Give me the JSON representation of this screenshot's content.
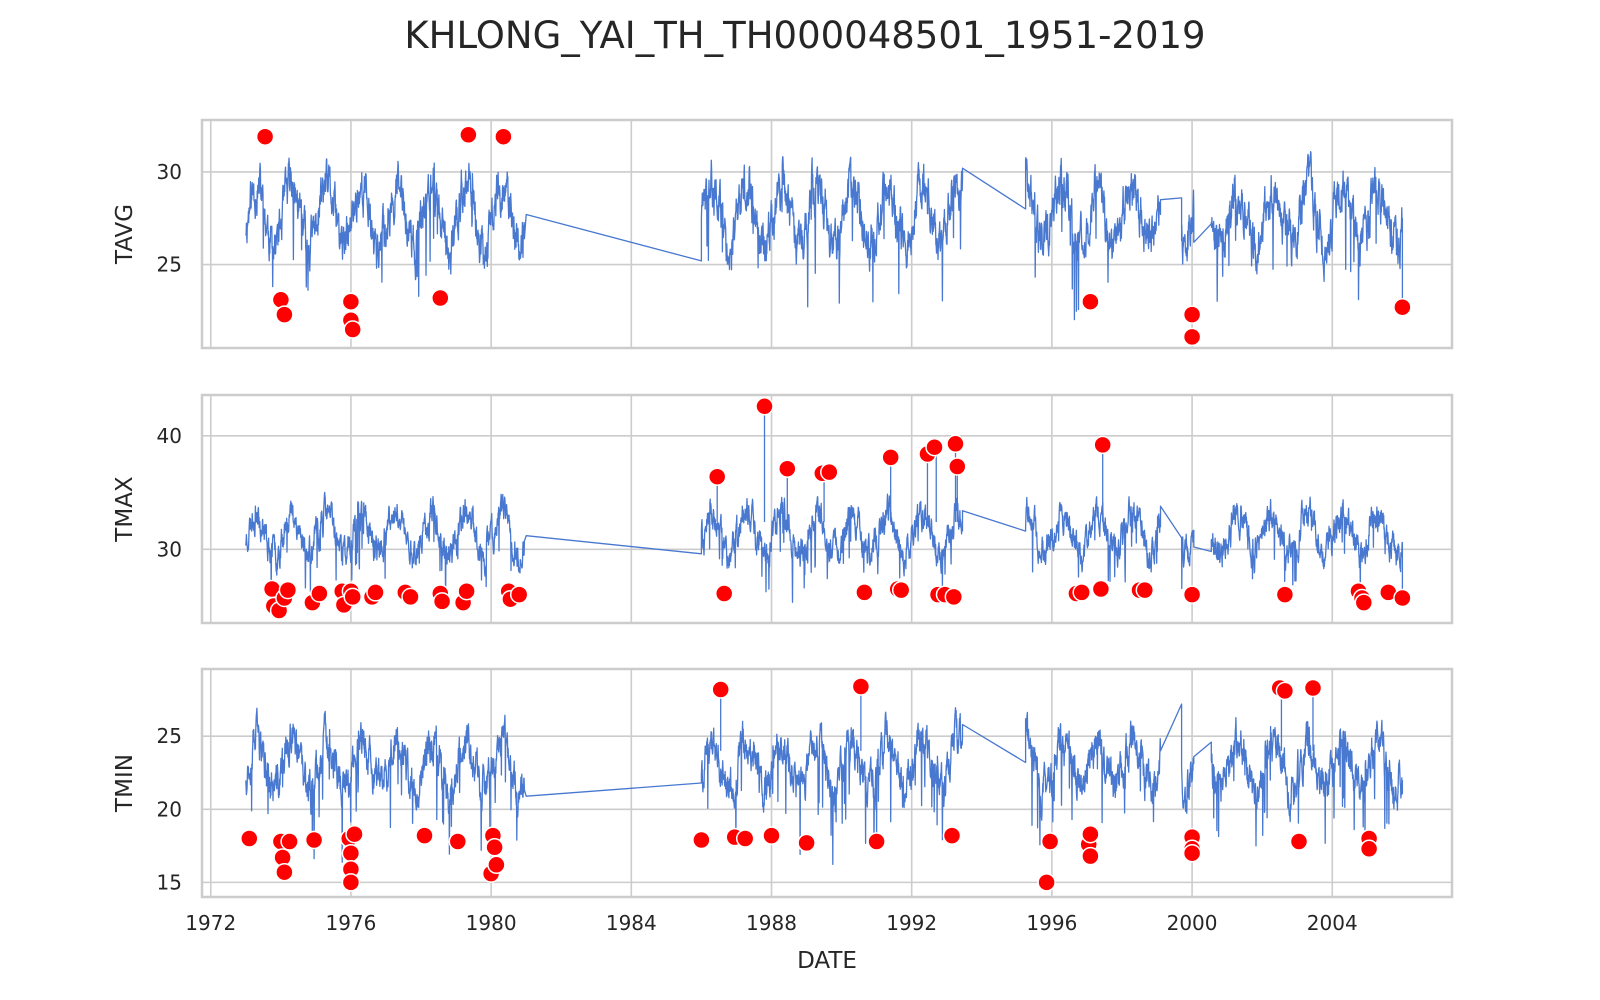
{
  "chart_data": {
    "type": "line",
    "title": "KHLONG_YAI_TH_TH000048501_1951-2019",
    "xlabel": "DATE",
    "x_ticks": [
      "1972",
      "1976",
      "1980",
      "1984",
      "1988",
      "1992",
      "1996",
      "2000",
      "2004"
    ],
    "xlim": [
      "1971-10",
      "2007-06"
    ],
    "grid": true,
    "colors": {
      "line": "#4878cf",
      "outlier": "#ff0000"
    },
    "segments": [
      [
        "1973.0",
        "1980.95"
      ],
      [
        "1986.0",
        "1993.45"
      ],
      [
        "1995.25",
        "1999.1"
      ],
      [
        "1999.7",
        "2000.05"
      ],
      [
        "2000.55",
        "2006.0"
      ]
    ],
    "panels": [
      {
        "ylabel": "TAVG",
        "ylim": [
          20.5,
          32.8
        ],
        "yticks": [
          25,
          30
        ],
        "series": {
          "seed": 11,
          "mean": 27.6,
          "amplitude": 1.6,
          "noise": 0.9,
          "dips": 0.02,
          "dip_depth": 3.5,
          "bridge_points": [
            [
              1981.0,
              27.7
            ],
            [
              1986.0,
              25.2
            ],
            [
              1993.45,
              30.2
            ],
            [
              1995.25,
              28.0
            ],
            [
              1999.1,
              28.5
            ],
            [
              1999.7,
              28.6
            ],
            [
              2000.05,
              26.2
            ],
            [
              2000.55,
              27.2
            ],
            [
              2006.0,
              22.7
            ]
          ]
        },
        "outliers": [
          [
            1973.55,
            31.9
          ],
          [
            1974.0,
            23.1
          ],
          [
            1974.1,
            22.3
          ],
          [
            1976.0,
            23.0
          ],
          [
            1976.0,
            22.0
          ],
          [
            1976.05,
            21.5
          ],
          [
            1978.55,
            23.2
          ],
          [
            1979.35,
            32.0
          ],
          [
            1980.35,
            31.9
          ],
          [
            1997.1,
            23.0
          ],
          [
            2000.0,
            22.3
          ],
          [
            2000.0,
            21.1
          ],
          [
            2006.0,
            22.7
          ]
        ]
      },
      {
        "ylabel": "TMAX",
        "ylim": [
          23.5,
          43.6
        ],
        "yticks": [
          30,
          40
        ],
        "series": {
          "seed": 23,
          "mean": 31.4,
          "amplitude": 1.8,
          "noise": 1.0,
          "dips": 0.025,
          "dip_depth": 4.0,
          "spikes": [
            [
              1986.45,
              36.4
            ],
            [
              1987.8,
              42.6
            ],
            [
              1988.45,
              37.1
            ],
            [
              1989.5,
              36.8
            ],
            [
              1991.4,
              38.1
            ],
            [
              1992.45,
              38.4
            ],
            [
              1992.7,
              39.0
            ],
            [
              1993.25,
              39.3
            ],
            [
              1993.3,
              37.3
            ],
            [
              1997.45,
              39.2
            ]
          ],
          "bridge_points": [
            [
              1981.0,
              31.2
            ],
            [
              1986.0,
              29.6
            ],
            [
              1993.45,
              33.4
            ],
            [
              1995.25,
              31.6
            ],
            [
              1999.1,
              33.8
            ],
            [
              1999.7,
              31.0
            ],
            [
              2000.05,
              30.2
            ],
            [
              2000.55,
              29.8
            ],
            [
              2006.0,
              26.0
            ]
          ]
        },
        "outliers": [
          [
            1973.75,
            26.5
          ],
          [
            1973.8,
            25.0
          ],
          [
            1973.95,
            24.6
          ],
          [
            1974.1,
            25.7
          ],
          [
            1974.2,
            26.4
          ],
          [
            1974.9,
            25.3
          ],
          [
            1975.1,
            26.1
          ],
          [
            1975.75,
            26.3
          ],
          [
            1975.8,
            25.1
          ],
          [
            1976.0,
            26.3
          ],
          [
            1976.05,
            25.8
          ],
          [
            1976.6,
            25.8
          ],
          [
            1976.7,
            26.2
          ],
          [
            1977.55,
            26.2
          ],
          [
            1977.7,
            25.8
          ],
          [
            1978.55,
            26.1
          ],
          [
            1978.6,
            25.4
          ],
          [
            1979.2,
            25.3
          ],
          [
            1979.3,
            26.3
          ],
          [
            1980.5,
            26.3
          ],
          [
            1980.55,
            25.6
          ],
          [
            1980.8,
            26.0
          ],
          [
            1986.45,
            36.4
          ],
          [
            1986.65,
            26.1
          ],
          [
            1987.8,
            42.6
          ],
          [
            1988.45,
            37.1
          ],
          [
            1989.45,
            36.7
          ],
          [
            1989.65,
            36.8
          ],
          [
            1990.65,
            26.2
          ],
          [
            1991.4,
            38.1
          ],
          [
            1991.6,
            26.5
          ],
          [
            1991.7,
            26.4
          ],
          [
            1992.45,
            38.4
          ],
          [
            1992.65,
            39.0
          ],
          [
            1992.75,
            26.0
          ],
          [
            1992.95,
            26.0
          ],
          [
            1993.2,
            25.8
          ],
          [
            1993.25,
            39.3
          ],
          [
            1993.3,
            37.3
          ],
          [
            1996.7,
            26.1
          ],
          [
            1996.85,
            26.2
          ],
          [
            1997.4,
            26.5
          ],
          [
            1997.45,
            39.2
          ],
          [
            1998.5,
            26.4
          ],
          [
            1998.65,
            26.4
          ],
          [
            2000.0,
            26.0
          ],
          [
            2002.65,
            26.0
          ],
          [
            2004.75,
            26.3
          ],
          [
            2004.85,
            25.7
          ],
          [
            2004.9,
            25.3
          ],
          [
            2005.6,
            26.2
          ],
          [
            2006.0,
            25.7
          ]
        ]
      },
      {
        "ylabel": "TMIN",
        "ylim": [
          14.0,
          29.6
        ],
        "yticks": [
          15,
          20,
          25
        ],
        "series": {
          "seed": 37,
          "mean": 23.0,
          "amplitude": 1.7,
          "noise": 1.0,
          "dips": 0.03,
          "dip_depth": 4.5,
          "spikes": [
            [
              1986.55,
              28.2
            ],
            [
              1990.55,
              28.4
            ],
            [
              2002.55,
              28.3
            ],
            [
              2003.45,
              28.3
            ]
          ],
          "bridge_points": [
            [
              1981.0,
              20.9
            ],
            [
              1986.0,
              21.8
            ],
            [
              1993.45,
              25.8
            ],
            [
              1995.25,
              23.2
            ],
            [
              1999.1,
              24.0
            ],
            [
              1999.7,
              27.2
            ],
            [
              2000.05,
              23.6
            ],
            [
              2000.55,
              24.6
            ],
            [
              2006.0,
              22.0
            ]
          ]
        },
        "outliers": [
          [
            1973.1,
            18.0
          ],
          [
            1974.0,
            17.8
          ],
          [
            1974.05,
            16.7
          ],
          [
            1974.1,
            15.7
          ],
          [
            1974.25,
            17.8
          ],
          [
            1974.95,
            17.9
          ],
          [
            1975.95,
            18.0
          ],
          [
            1976.0,
            17.0
          ],
          [
            1976.0,
            15.9
          ],
          [
            1976.0,
            15.0
          ],
          [
            1976.1,
            18.3
          ],
          [
            1978.1,
            18.2
          ],
          [
            1979.05,
            17.8
          ],
          [
            1980.0,
            15.6
          ],
          [
            1980.05,
            18.2
          ],
          [
            1980.1,
            17.4
          ],
          [
            1980.15,
            16.2
          ],
          [
            1986.0,
            17.9
          ],
          [
            1986.55,
            28.2
          ],
          [
            1986.95,
            18.1
          ],
          [
            1987.25,
            18.0
          ],
          [
            1988.0,
            18.2
          ],
          [
            1989.0,
            17.7
          ],
          [
            1990.55,
            28.4
          ],
          [
            1991.0,
            17.8
          ],
          [
            1993.15,
            18.2
          ],
          [
            1995.85,
            15.0
          ],
          [
            1995.95,
            17.8
          ],
          [
            1997.05,
            17.6
          ],
          [
            1997.1,
            18.3
          ],
          [
            1997.1,
            16.8
          ],
          [
            2000.0,
            18.1
          ],
          [
            2000.0,
            17.3
          ],
          [
            2000.0,
            17.0
          ],
          [
            2002.5,
            28.3
          ],
          [
            2002.65,
            28.1
          ],
          [
            2003.05,
            17.8
          ],
          [
            2003.45,
            28.3
          ],
          [
            2005.05,
            18.0
          ],
          [
            2005.05,
            17.3
          ]
        ]
      }
    ]
  }
}
